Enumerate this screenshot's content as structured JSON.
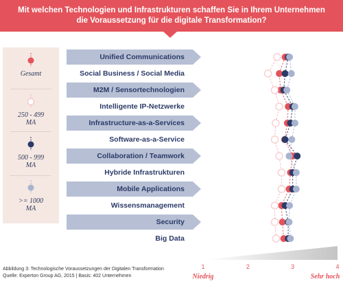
{
  "header": {
    "line1": "Mit welchen Technologien und Infrastrukturen schaffen Sie in Ihrem Unternehmen",
    "line2": "die Voraussetzung für die digitale Transformation?"
  },
  "legend": [
    {
      "label": "Gesamt",
      "color": "#e4535b",
      "style": "solid"
    },
    {
      "label": "250 - 499 MA",
      "color": "#f3b3b6",
      "style": "dotted"
    },
    {
      "label": "500 - 999 MA",
      "color": "#2b3a67",
      "style": "solid"
    },
    {
      "label": ">= 1000 MA",
      "color": "#a7b3cf",
      "style": "solid"
    }
  ],
  "footer": {
    "caption": "Abbildung 3: Technologische Voraussetzungen der Digitalen Transformation",
    "source": "Quelle: Experton Group AG, 2015  |  Basis: 402 Unternehmen"
  },
  "colors": {
    "accent": "#e4535b",
    "navy": "#2b3a67",
    "band": "#b6bfd4",
    "light_blue": "#a7b3cf",
    "light_red": "#f3b3b6"
  },
  "chart_data": {
    "type": "scatter",
    "categories": [
      "Unified Communications",
      "Social Business / Social Media",
      "M2M / Sensortechnologien",
      "Intelligente IP-Netzwerke",
      "Infrastructure-as-a-Services",
      "Software-as-a-Service",
      "Collaboration / Teamwork",
      "Hybride Infrastrukturen",
      "Mobile Applications",
      "Wissensmanagement",
      "Security",
      "Big Data"
    ],
    "series": [
      {
        "name": "Gesamt",
        "values": [
          2.83,
          2.7,
          2.73,
          2.9,
          2.88,
          2.82,
          3.0,
          2.95,
          2.92,
          2.75,
          2.77,
          2.8
        ]
      },
      {
        "name": "250 - 499 MA",
        "values": [
          2.65,
          2.45,
          2.6,
          2.7,
          2.62,
          2.6,
          2.7,
          2.75,
          2.75,
          2.6,
          2.6,
          2.63
        ]
      },
      {
        "name": "500 - 999 MA",
        "values": [
          2.9,
          2.83,
          2.8,
          3.0,
          2.95,
          2.83,
          3.1,
          3.0,
          3.0,
          2.83,
          2.9,
          2.9
        ]
      },
      {
        "name": ">= 1000 MA",
        "values": [
          2.93,
          2.97,
          2.87,
          3.05,
          3.05,
          2.98,
          2.92,
          3.08,
          3.08,
          2.93,
          2.92,
          2.95
        ]
      }
    ],
    "xlim": [
      1,
      4
    ],
    "xticks": [
      "1",
      "2",
      "3",
      "4"
    ],
    "xlabel_low": "Niedrig",
    "xlabel_high": "Sehr hoch"
  }
}
